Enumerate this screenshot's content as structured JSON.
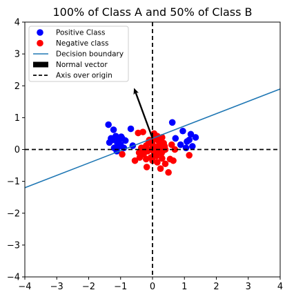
{
  "chart_data": {
    "type": "scatter",
    "title": "100% of Class A and 50% of Class B",
    "xlabel": "",
    "ylabel": "",
    "xlim": [
      -4,
      4
    ],
    "ylim": [
      -4,
      4
    ],
    "xticks": [
      -4,
      -3,
      -2,
      -1,
      0,
      1,
      2,
      3,
      4
    ],
    "yticks": [
      -4,
      -3,
      -2,
      -1,
      0,
      1,
      2,
      3,
      4
    ],
    "grid": false,
    "legend_placement": "upper-left",
    "legend": [
      {
        "label": "Positive Class",
        "kind": "marker",
        "color": "#0000ff"
      },
      {
        "label": "Negative class",
        "kind": "marker",
        "color": "#ff0000"
      },
      {
        "label": "Decision boundary",
        "kind": "line",
        "color": "#1f77b4"
      },
      {
        "label": "Normal vector",
        "kind": "bar",
        "color": "#000000"
      },
      {
        "label": "Axis over origin",
        "kind": "dashed",
        "color": "#000000"
      }
    ],
    "series": [
      {
        "name": "Positive Class",
        "color": "#0000ff",
        "points": [
          [
            -1.38,
            0.78
          ],
          [
            -1.22,
            0.62
          ],
          [
            -1.3,
            0.35
          ],
          [
            -1.15,
            0.42
          ],
          [
            -1.05,
            0.32
          ],
          [
            -0.95,
            0.35
          ],
          [
            -1.1,
            0.2
          ],
          [
            -1.35,
            0.22
          ],
          [
            -1.2,
            0.05
          ],
          [
            -1.0,
            0.15
          ],
          [
            -0.9,
            0.05
          ],
          [
            -0.68,
            0.65
          ],
          [
            -0.62,
            0.12
          ],
          [
            -0.85,
            0.28
          ],
          [
            -1.08,
            0.08
          ],
          [
            -1.25,
            0.3
          ],
          [
            -0.98,
            0.4
          ],
          [
            -1.12,
            -0.05
          ],
          [
            0.62,
            0.85
          ],
          [
            0.95,
            0.58
          ],
          [
            1.2,
            0.48
          ],
          [
            1.08,
            0.25
          ],
          [
            1.25,
            0.1
          ],
          [
            1.35,
            0.38
          ],
          [
            1.05,
            0.05
          ],
          [
            0.72,
            0.35
          ],
          [
            0.88,
            0.15
          ],
          [
            1.15,
            0.3
          ]
        ]
      },
      {
        "name": "Negative class",
        "color": "#ff0000",
        "points": [
          [
            -0.45,
            0.52
          ],
          [
            -0.3,
            0.55
          ],
          [
            0.05,
            0.5
          ],
          [
            0.15,
            0.42
          ],
          [
            0.3,
            0.38
          ],
          [
            -0.1,
            0.3
          ],
          [
            0.2,
            0.25
          ],
          [
            0.35,
            0.2
          ],
          [
            0.0,
            0.15
          ],
          [
            -0.2,
            0.12
          ],
          [
            0.1,
            0.08
          ],
          [
            0.25,
            0.05
          ],
          [
            -0.05,
            0.0
          ],
          [
            0.18,
            -0.02
          ],
          [
            0.4,
            0.0
          ],
          [
            -0.35,
            0.05
          ],
          [
            -0.15,
            -0.05
          ],
          [
            0.05,
            -0.1
          ],
          [
            0.28,
            -0.12
          ],
          [
            -0.28,
            -0.15
          ],
          [
            0.12,
            -0.2
          ],
          [
            -0.05,
            -0.25
          ],
          [
            0.3,
            -0.28
          ],
          [
            -0.2,
            -0.3
          ],
          [
            0.0,
            -0.35
          ],
          [
            -0.55,
            -0.35
          ],
          [
            -0.18,
            -0.55
          ],
          [
            0.25,
            -0.6
          ],
          [
            0.5,
            -0.72
          ],
          [
            0.55,
            -0.3
          ],
          [
            0.65,
            -0.35
          ],
          [
            0.4,
            -0.45
          ],
          [
            -0.4,
            -0.25
          ],
          [
            0.6,
            0.15
          ],
          [
            0.7,
            0.0
          ],
          [
            1.15,
            -0.18
          ],
          [
            -0.95,
            -0.15
          ],
          [
            0.08,
            0.32
          ],
          [
            -0.3,
            -0.05
          ],
          [
            0.22,
            0.12
          ],
          [
            0.38,
            0.1
          ],
          [
            -0.12,
            0.22
          ],
          [
            0.15,
            -0.4
          ],
          [
            0.32,
            -0.05
          ],
          [
            -0.42,
            -0.1
          ]
        ]
      }
    ],
    "decision_boundary": {
      "x": [
        -4,
        4
      ],
      "y": [
        -1.2,
        1.9
      ],
      "color": "#1f77b4"
    },
    "normal_vector": {
      "from": [
        0,
        0.35
      ],
      "to": [
        -0.55,
        1.85
      ],
      "color": "#000000"
    },
    "origin_axes": {
      "style": "dashed",
      "color": "#000000",
      "x": 0,
      "y": 0
    }
  }
}
